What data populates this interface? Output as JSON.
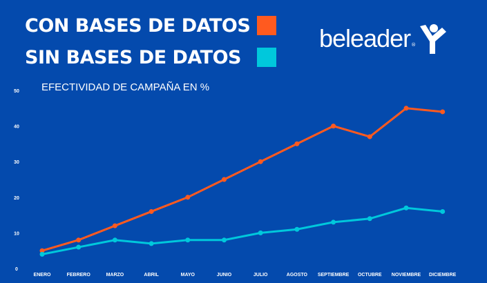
{
  "chart_data": {
    "type": "line",
    "title": "EFECTIVIDAD DE CAMPAÑA EN %",
    "categories": [
      "ENERO",
      "FEBRERO",
      "MARZO",
      "ABRIL",
      "MAYO",
      "JUNIO",
      "JULIO",
      "AGOSTO",
      "SEPTIEMBRE",
      "OCTUBRE",
      "NOVIEMBRE",
      "DICIEMBRE"
    ],
    "yticks": [
      0,
      10,
      20,
      30,
      40,
      50
    ],
    "ylim": [
      0,
      50
    ],
    "grid": false,
    "legend_placement": "top-left",
    "series": [
      {
        "name": "CON BASES DE DATOS",
        "color": "#ff5a1f",
        "values": [
          5,
          8,
          12,
          16,
          20,
          25,
          30,
          35,
          40,
          37,
          45,
          44
        ]
      },
      {
        "name": "SIN BASES DE DATOS",
        "color": "#00c8dc",
        "values": [
          4,
          6,
          8,
          7,
          8,
          8,
          10,
          11,
          13,
          14,
          17,
          16
        ]
      }
    ]
  },
  "logo": {
    "text": "beleader",
    "registered": "®"
  },
  "colors": {
    "background": "#044aad"
  }
}
